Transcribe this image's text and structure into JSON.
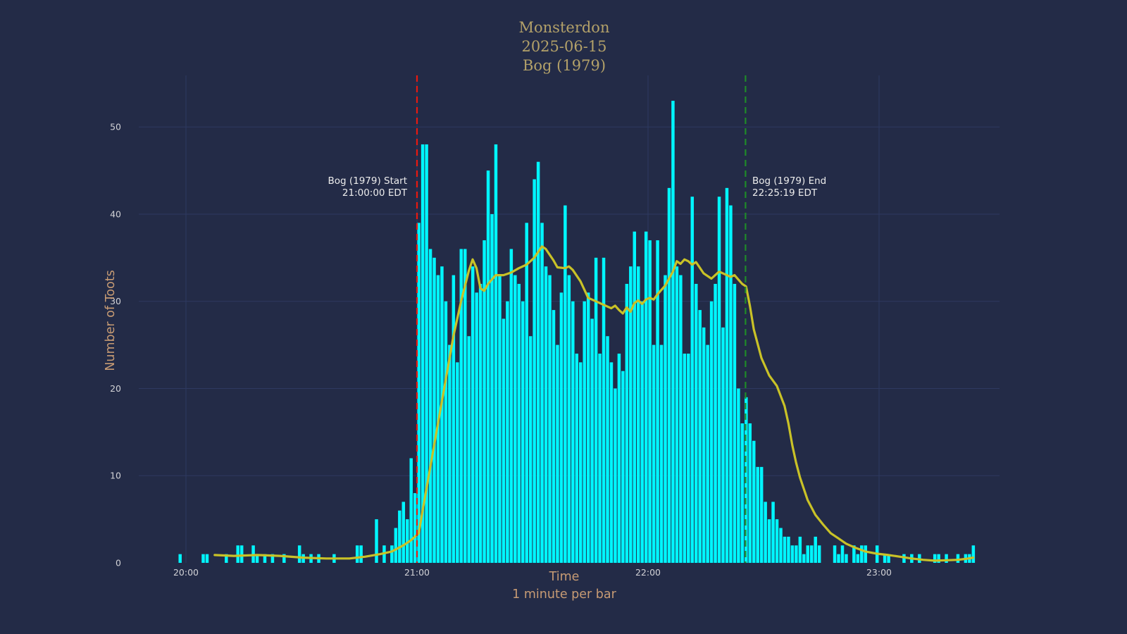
{
  "title": {
    "line1": "Monsterdon",
    "line2": "2025-06-15",
    "line3": "Bog (1979)"
  },
  "axes": {
    "y_label": "Number of Toots",
    "x_label": "Time",
    "x_sublabel": "1 minute per bar",
    "y_ticks": [
      0,
      10,
      20,
      30,
      40,
      50
    ],
    "x_ticks": [
      {
        "label": "20:00",
        "minutes_from_2000": 0
      },
      {
        "label": "21:00",
        "minutes_from_2000": 60
      },
      {
        "label": "22:00",
        "minutes_from_2000": 120
      },
      {
        "label": "23:00",
        "minutes_from_2000": 180
      }
    ]
  },
  "annotations": {
    "start": {
      "line1": "Bog (1979) Start",
      "line2": "21:00:00 EDT"
    },
    "end": {
      "line1": "Bog (1979) End",
      "line2": "22:25:19 EDT"
    }
  },
  "colors": {
    "background": "#232b47",
    "grid": "#2e3960",
    "bars": "#00f6ff",
    "smoothed_line": "#c9c227",
    "start_line": "#ea1910",
    "end_line": "#1f8b28",
    "title": "#b3a169",
    "axis_labels": "#c79b74",
    "tick_labels": "#d2d2d6",
    "annotation_text": "#ececec"
  },
  "chart_data": {
    "type": "bar",
    "title": "Monsterdon 2025-06-15 Bog (1979)",
    "xlabel": "Time",
    "xlabel_sub": "1 minute per bar",
    "ylabel": "Number of Toots",
    "ylim": [
      0,
      55.6
    ],
    "grid": true,
    "bar_interval_minutes": 1,
    "first_bar_time": "19:58",
    "last_bar_time": "23:24",
    "first_bar_offset_minutes_from_2000": -2,
    "x_tick_labels": [
      "20:00",
      "21:00",
      "22:00",
      "23:00"
    ],
    "values_per_minute": [
      1,
      0,
      0,
      0,
      0,
      0,
      1,
      1,
      0,
      0,
      0,
      0,
      1,
      0,
      0,
      2,
      2,
      0,
      0,
      2,
      1,
      0,
      1,
      0,
      1,
      0,
      0,
      1,
      0,
      0,
      0,
      2,
      1,
      0,
      1,
      0,
      1,
      0,
      0,
      0,
      1,
      0,
      0,
      0,
      0,
      0,
      2,
      2,
      0,
      0,
      0,
      5,
      0,
      2,
      0,
      2,
      4,
      6,
      7,
      5,
      12,
      8,
      39,
      48,
      48,
      36,
      35,
      33,
      34,
      30,
      25,
      33,
      23,
      36,
      36,
      26,
      34,
      31,
      32,
      37,
      45,
      40,
      48,
      33,
      28,
      30,
      36,
      33,
      32,
      30,
      39,
      26,
      44,
      46,
      39,
      34,
      33,
      29,
      25,
      31,
      41,
      33,
      30,
      24,
      23,
      30,
      31,
      28,
      35,
      24,
      35,
      26,
      23,
      20,
      24,
      22,
      32,
      34,
      38,
      34,
      30,
      38,
      37,
      25,
      37,
      25,
      33,
      43,
      53,
      34,
      33,
      24,
      24,
      42,
      32,
      29,
      27,
      25,
      30,
      32,
      42,
      27,
      43,
      41,
      32,
      20,
      16,
      19,
      16,
      14,
      11,
      11,
      7,
      5,
      7,
      5,
      4,
      3,
      3,
      2,
      2,
      3,
      1,
      2,
      2,
      3,
      2,
      0,
      0,
      0,
      2,
      1,
      2,
      1,
      0,
      2,
      1,
      2,
      2,
      0,
      0,
      2,
      0,
      1,
      1,
      0,
      0,
      0,
      1,
      0,
      1,
      0,
      1,
      0,
      0,
      0,
      1,
      1,
      0,
      1,
      0,
      0,
      1,
      0,
      1,
      1,
      2
    ],
    "smoothed_series": {
      "name": "rolling average",
      "points_minutes_value": [
        [
          7,
          0.9
        ],
        [
          12,
          0.8
        ],
        [
          18,
          0.9
        ],
        [
          24,
          0.8
        ],
        [
          30,
          0.6
        ],
        [
          36,
          0.5
        ],
        [
          42,
          0.5
        ],
        [
          46,
          0.7
        ],
        [
          50,
          1.0
        ],
        [
          53,
          1.3
        ],
        [
          56,
          2.0
        ],
        [
          58,
          2.6
        ],
        [
          60,
          3.4
        ],
        [
          61,
          6.0
        ],
        [
          63,
          11
        ],
        [
          65,
          16
        ],
        [
          67,
          21
        ],
        [
          69,
          26
        ],
        [
          71,
          30
        ],
        [
          73,
          33.5
        ],
        [
          74,
          34.8
        ],
        [
          75,
          33.8
        ],
        [
          76,
          31.5
        ],
        [
          77,
          31.2
        ],
        [
          78,
          32.0
        ],
        [
          80,
          33.0
        ],
        [
          82,
          33.0
        ],
        [
          84,
          33.3
        ],
        [
          86,
          33.8
        ],
        [
          88,
          34.2
        ],
        [
          90,
          35.0
        ],
        [
          92,
          36.3
        ],
        [
          93,
          36.0
        ],
        [
          95,
          34.7
        ],
        [
          96,
          33.9
        ],
        [
          98,
          33.8
        ],
        [
          99,
          34.0
        ],
        [
          100,
          33.6
        ],
        [
          102,
          32.3
        ],
        [
          104,
          30.4
        ],
        [
          106,
          30.0
        ],
        [
          108,
          29.6
        ],
        [
          110,
          29.2
        ],
        [
          111,
          29.5
        ],
        [
          112,
          29.0
        ],
        [
          113,
          28.6
        ],
        [
          114,
          29.3
        ],
        [
          115,
          28.8
        ],
        [
          116,
          29.8
        ],
        [
          117,
          30.1
        ],
        [
          118,
          29.7
        ],
        [
          119,
          30.2
        ],
        [
          120,
          30.4
        ],
        [
          121,
          30.2
        ],
        [
          122,
          30.8
        ],
        [
          124,
          31.8
        ],
        [
          126,
          33.4
        ],
        [
          127,
          34.6
        ],
        [
          128,
          34.3
        ],
        [
          129,
          34.8
        ],
        [
          130,
          34.6
        ],
        [
          131,
          34.2
        ],
        [
          132,
          34.5
        ],
        [
          134,
          33.2
        ],
        [
          136,
          32.6
        ],
        [
          137,
          33.0
        ],
        [
          138,
          33.4
        ],
        [
          139,
          33.2
        ],
        [
          141,
          32.8
        ],
        [
          142,
          33.0
        ],
        [
          143,
          32.5
        ],
        [
          144,
          32.0
        ],
        [
          145,
          31.7
        ],
        [
          146,
          29.5
        ],
        [
          147,
          26.8
        ],
        [
          149,
          23.5
        ],
        [
          151,
          21.5
        ],
        [
          153,
          20.3
        ],
        [
          155,
          18.0
        ],
        [
          156,
          16.0
        ],
        [
          157,
          13.5
        ],
        [
          158,
          11.5
        ],
        [
          159,
          9.8
        ],
        [
          161,
          7.2
        ],
        [
          163,
          5.5
        ],
        [
          165,
          4.4
        ],
        [
          167,
          3.4
        ],
        [
          169,
          2.8
        ],
        [
          171,
          2.2
        ],
        [
          173,
          1.8
        ],
        [
          176,
          1.3
        ],
        [
          179,
          1.05
        ],
        [
          182,
          0.9
        ],
        [
          185,
          0.7
        ],
        [
          188,
          0.5
        ],
        [
          191,
          0.35
        ],
        [
          194,
          0.25
        ],
        [
          197,
          0.3
        ],
        [
          200,
          0.35
        ],
        [
          202,
          0.45
        ],
        [
          204,
          0.6
        ]
      ]
    },
    "events": [
      {
        "name": "start",
        "label": "Bog (1979) Start",
        "time": "21:00:00 EDT",
        "minutes_from_2000": 60,
        "style": "dashed",
        "color": "#ea1910"
      },
      {
        "name": "end",
        "label": "Bog (1979) End",
        "time": "22:25:19 EDT",
        "minutes_from_2000": 145.32,
        "style": "dashed",
        "color": "#1f8b28"
      }
    ]
  }
}
